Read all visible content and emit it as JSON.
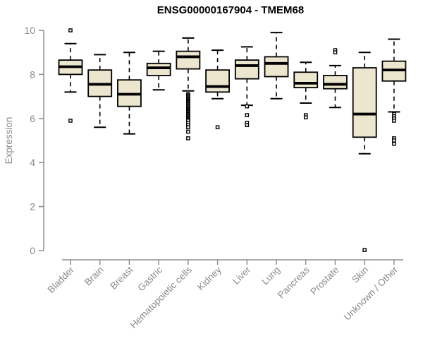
{
  "chart_data": {
    "type": "boxplot",
    "title": "ENSG00000167904 - TMEM68",
    "ylabel": "Expression",
    "xlabel": "",
    "ylim": [
      0,
      10
    ],
    "yticks": [
      0,
      2,
      4,
      6,
      8,
      10
    ],
    "grid": false,
    "legend": null,
    "categories": [
      "Bladder",
      "Brain",
      "Breast",
      "Gastric",
      "Hematopoietic cells",
      "Kidney",
      "Liver",
      "Lung",
      "Pancreas",
      "Prostate",
      "Skin",
      "Unknown / Other"
    ],
    "series": [
      {
        "category": "Bladder",
        "whisker_low": 7.2,
        "q1": 8.0,
        "median": 8.35,
        "q3": 8.65,
        "whisker_high": 9.4,
        "outliers": [
          10.0,
          5.9
        ]
      },
      {
        "category": "Brain",
        "whisker_low": 5.6,
        "q1": 7.0,
        "median": 7.55,
        "q3": 8.2,
        "whisker_high": 8.9,
        "outliers": []
      },
      {
        "category": "Breast",
        "whisker_low": 5.3,
        "q1": 6.55,
        "median": 7.1,
        "q3": 7.75,
        "whisker_high": 9.0,
        "outliers": []
      },
      {
        "category": "Gastric",
        "whisker_low": 7.3,
        "q1": 7.95,
        "median": 8.3,
        "q3": 8.5,
        "whisker_high": 9.05,
        "outliers": []
      },
      {
        "category": "Hematopoietic cells",
        "whisker_low": 7.25,
        "q1": 8.25,
        "median": 8.8,
        "q3": 9.05,
        "whisker_high": 9.65,
        "outliers": [
          7.1,
          7.05,
          7.0,
          6.95,
          6.9,
          6.85,
          6.8,
          6.75,
          6.7,
          6.65,
          6.6,
          6.55,
          6.5,
          6.45,
          6.4,
          6.35,
          6.3,
          6.25,
          6.2,
          6.15,
          6.1,
          6.05,
          6.0,
          5.95,
          5.9,
          5.8,
          5.7,
          5.6,
          5.4,
          5.1
        ]
      },
      {
        "category": "Kidney",
        "whisker_low": 6.9,
        "q1": 7.2,
        "median": 7.45,
        "q3": 8.2,
        "whisker_high": 9.1,
        "outliers": [
          5.6
        ]
      },
      {
        "category": "Liver",
        "whisker_low": 6.6,
        "q1": 7.8,
        "median": 8.4,
        "q3": 8.65,
        "whisker_high": 9.25,
        "outliers": [
          6.55,
          6.15,
          5.8,
          5.7
        ]
      },
      {
        "category": "Lung",
        "whisker_low": 6.9,
        "q1": 7.9,
        "median": 8.5,
        "q3": 8.8,
        "whisker_high": 9.9,
        "outliers": []
      },
      {
        "category": "Pancreas",
        "whisker_low": 6.7,
        "q1": 7.4,
        "median": 7.6,
        "q3": 8.1,
        "whisker_high": 8.55,
        "outliers": [
          6.15,
          6.05
        ]
      },
      {
        "category": "Prostate",
        "whisker_low": 6.5,
        "q1": 7.35,
        "median": 7.55,
        "q3": 7.95,
        "whisker_high": 8.4,
        "outliers": [
          9.1,
          9.0
        ]
      },
      {
        "category": "Skin",
        "whisker_low": 4.4,
        "q1": 5.15,
        "median": 6.2,
        "q3": 8.3,
        "whisker_high": 9.0,
        "outliers": [
          0.03
        ]
      },
      {
        "category": "Unknown / Other",
        "whisker_low": 6.3,
        "q1": 7.7,
        "median": 8.2,
        "q3": 8.6,
        "whisker_high": 9.6,
        "outliers": [
          6.2,
          6.1,
          6.0,
          5.9,
          5.1,
          5.0,
          4.85
        ]
      }
    ],
    "colors": {
      "box_fill": "#ECE6CE",
      "box_stroke": "#000000",
      "median": "#000000",
      "whisker": "#000000",
      "outlier_stroke": "#000000",
      "outlier_fill": "#ffffff",
      "axis": "#8f8f8f",
      "tick_label": "#8a8a8a",
      "title": "#000000"
    }
  }
}
